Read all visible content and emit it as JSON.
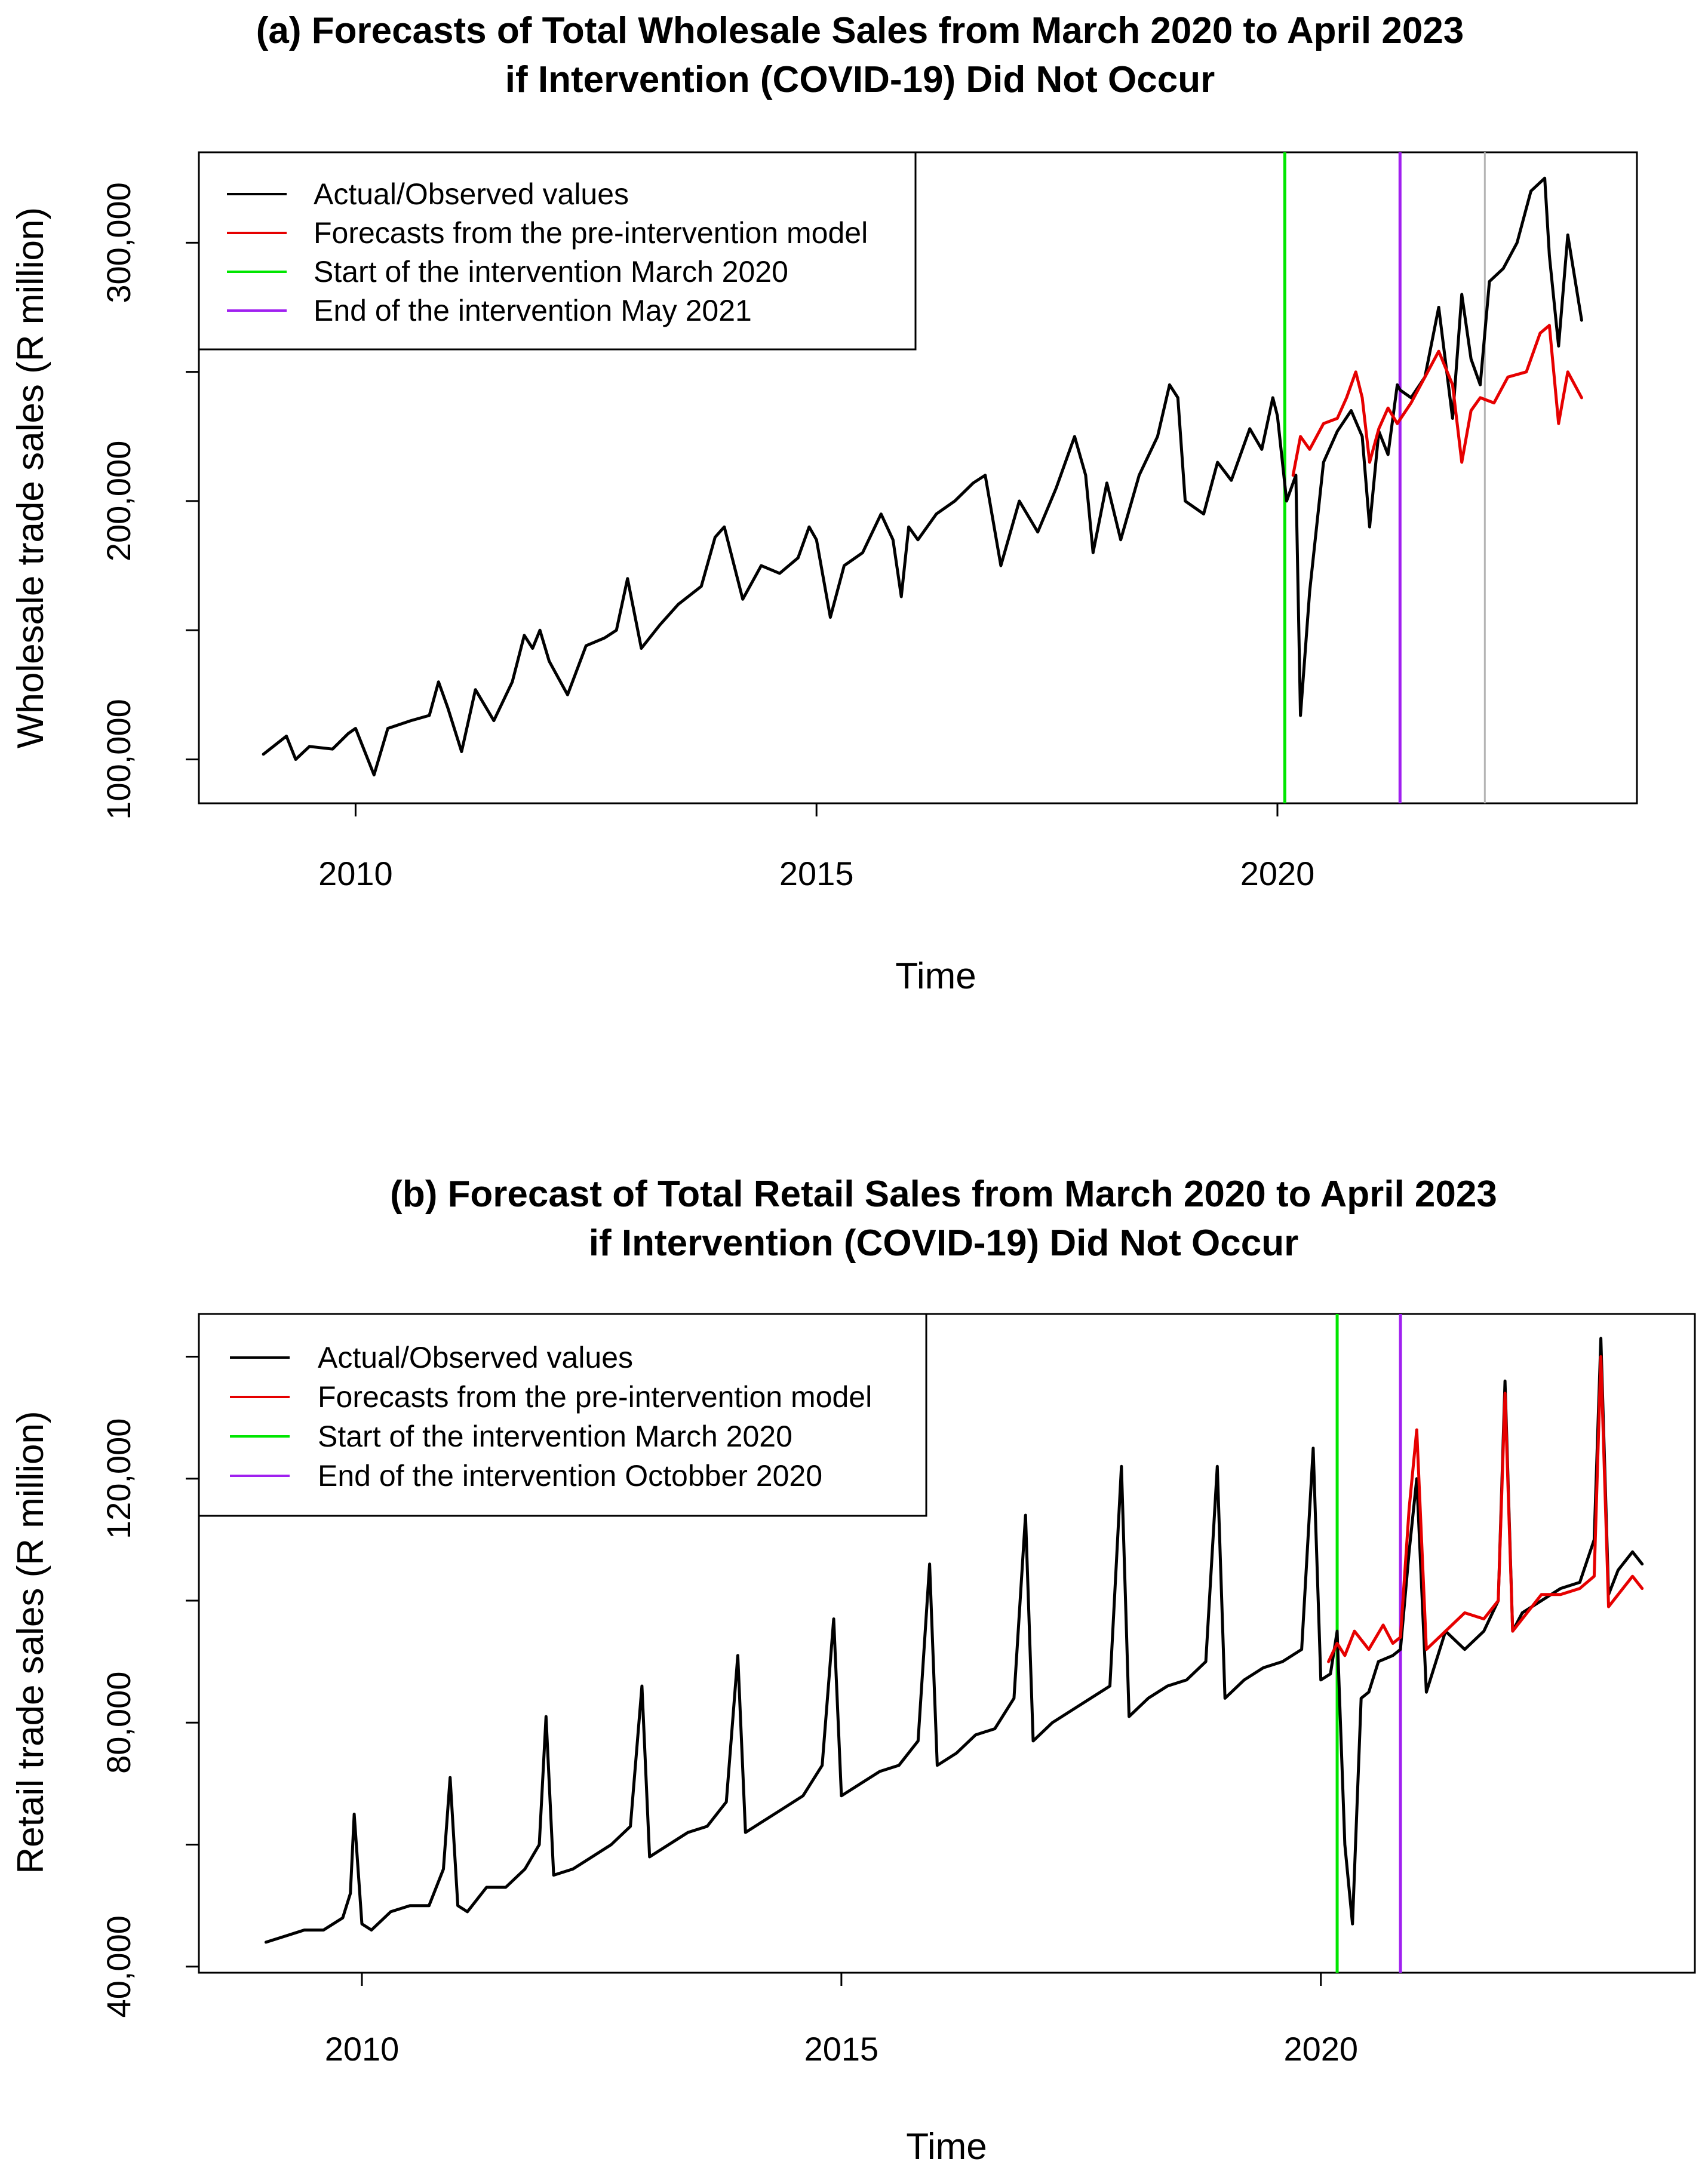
{
  "chart_data": [
    {
      "type": "line",
      "panel": "a",
      "title": [
        "(a) Forecasts of Total Wholesale Sales from March 2020 to April 2023",
        "if Intervention (COVID-19) Did Not Occur"
      ],
      "xlabel": "Time",
      "ylabel": "Wholesale trade sales (R million)",
      "xlim": [
        2008.3,
        2023.9
      ],
      "ylim": [
        83000,
        335000
      ],
      "xticks": [
        2010,
        2015,
        2020
      ],
      "xtick_labels": [
        "2010",
        "2015",
        "2020"
      ],
      "yticks": [
        100000,
        150000,
        200000,
        250000,
        300000
      ],
      "ytick_labels": [
        "100,000",
        "",
        "200,000",
        "",
        "300,000"
      ],
      "legend_position": "top-left",
      "legend": [
        {
          "label": "Actual/Observed values",
          "color": "#000000"
        },
        {
          "label": "Forecasts from the pre-intervention model",
          "color": "#e60000"
        },
        {
          "label": "Start of the intervention March 2020",
          "color": "#00e600"
        },
        {
          "label": "End of the intervention May 2021",
          "color": "#a020f0"
        }
      ],
      "vlines": [
        {
          "x": 2020.08,
          "color": "#00e600"
        },
        {
          "x": 2021.33,
          "color": "#a020f0"
        },
        {
          "x": 2022.25,
          "color": "#b4b4b4"
        }
      ],
      "series": [
        {
          "name": "Actual/Observed values",
          "color": "#000000",
          "x": [
            2009.0,
            2009.25,
            2009.35,
            2009.5,
            2009.75,
            2009.92,
            2010.0,
            2010.2,
            2010.35,
            2010.6,
            2010.8,
            2010.9,
            2011.0,
            2011.15,
            2011.3,
            2011.5,
            2011.7,
            2011.83,
            2011.92,
            2012.0,
            2012.1,
            2012.3,
            2012.5,
            2012.7,
            2012.83,
            2012.95,
            2013.1,
            2013.3,
            2013.5,
            2013.75,
            2013.9,
            2014.0,
            2014.2,
            2014.4,
            2014.6,
            2014.8,
            2014.92,
            2015.0,
            2015.15,
            2015.3,
            2015.5,
            2015.7,
            2015.83,
            2015.92,
            2016.0,
            2016.1,
            2016.3,
            2016.5,
            2016.7,
            2016.83,
            2017.0,
            2017.2,
            2017.4,
            2017.6,
            2017.8,
            2017.92,
            2018.0,
            2018.15,
            2018.3,
            2018.5,
            2018.7,
            2018.83,
            2018.92,
            2019.0,
            2019.2,
            2019.35,
            2019.5,
            2019.7,
            2019.83,
            2019.95,
            2020.0,
            2020.1,
            2020.2,
            2020.25,
            2020.35,
            2020.5,
            2020.65,
            2020.8,
            2020.92,
            2021.0,
            2021.1,
            2021.2,
            2021.3,
            2021.33,
            2021.45,
            2021.6,
            2021.75,
            2021.9,
            2022.0,
            2022.1,
            2022.2,
            2022.3,
            2022.45,
            2022.6,
            2022.75,
            2022.9,
            2022.95,
            2023.05,
            2023.15,
            2023.3
          ],
          "values": [
            102000,
            109000,
            100000,
            105000,
            104000,
            110000,
            112000,
            94000,
            112000,
            115000,
            117000,
            130000,
            120000,
            103000,
            127000,
            115000,
            130000,
            148000,
            143000,
            150000,
            138000,
            125000,
            144000,
            147000,
            150000,
            170000,
            143000,
            152000,
            160000,
            167000,
            186000,
            190000,
            162000,
            175000,
            172000,
            178000,
            190000,
            185000,
            155000,
            175000,
            180000,
            195000,
            185000,
            163000,
            190000,
            185000,
            195000,
            200000,
            207000,
            210000,
            175000,
            200000,
            188000,
            205000,
            225000,
            210000,
            180000,
            207000,
            185000,
            210000,
            225000,
            245000,
            240000,
            200000,
            195000,
            215000,
            208000,
            228000,
            220000,
            240000,
            233000,
            200000,
            210000,
            117000,
            165000,
            215000,
            227000,
            235000,
            225000,
            190000,
            227000,
            218000,
            245000,
            243000,
            240000,
            248000,
            275000,
            232000,
            280000,
            255000,
            245000,
            285000,
            290000,
            300000,
            320000,
            325000,
            295000,
            260000,
            303000,
            270000
          ]
        },
        {
          "name": "Forecasts from the pre-intervention model",
          "color": "#e60000",
          "x": [
            2020.17,
            2020.25,
            2020.35,
            2020.5,
            2020.65,
            2020.75,
            2020.85,
            2020.92,
            2021.0,
            2021.1,
            2021.2,
            2021.3,
            2021.45,
            2021.6,
            2021.75,
            2021.9,
            2022.0,
            2022.1,
            2022.2,
            2022.35,
            2022.5,
            2022.7,
            2022.85,
            2022.95,
            2023.05,
            2023.15,
            2023.3
          ],
          "values": [
            210000,
            225000,
            220000,
            230000,
            232000,
            240000,
            250000,
            240000,
            215000,
            228000,
            236000,
            230000,
            238000,
            248000,
            258000,
            245000,
            215000,
            235000,
            240000,
            238000,
            248000,
            250000,
            265000,
            268000,
            230000,
            250000,
            240000
          ]
        }
      ]
    },
    {
      "type": "line",
      "panel": "b",
      "title": [
        "(b) Forecast of Total Retail Sales from March 2020 to April 2023",
        "if Intervention (COVID-19) Did Not Occur"
      ],
      "xlabel": "Time",
      "ylabel": "Retail trade sales (R million)",
      "xlim": [
        2008.3,
        2023.9
      ],
      "ylim": [
        39000,
        147000
      ],
      "xticks": [
        2010,
        2015,
        2020
      ],
      "xtick_labels": [
        "2010",
        "2015",
        "2020"
      ],
      "yticks": [
        40000,
        60000,
        80000,
        100000,
        120000,
        140000
      ],
      "ytick_labels": [
        "40,000",
        "",
        "80,000",
        "",
        "120,000",
        ""
      ],
      "legend_position": "top-left",
      "legend": [
        {
          "label": "Actual/Observed values",
          "color": "#000000"
        },
        {
          "label": "Forecasts from the pre-intervention model",
          "color": "#e60000"
        },
        {
          "label": "Start of the intervention March 2020",
          "color": "#00e600"
        },
        {
          "label": "End of the intervention Octobber 2020",
          "color": "#a020f0"
        }
      ],
      "vlines": [
        {
          "x": 2020.17,
          "color": "#00e600"
        },
        {
          "x": 2020.83,
          "color": "#a020f0"
        }
      ],
      "series": [
        {
          "name": "Actual/Observed values",
          "color": "#000000",
          "x": [
            2009.0,
            2009.2,
            2009.4,
            2009.6,
            2009.8,
            2009.88,
            2009.92,
            2010.0,
            2010.1,
            2010.3,
            2010.5,
            2010.7,
            2010.85,
            2010.92,
            2011.0,
            2011.1,
            2011.3,
            2011.5,
            2011.7,
            2011.85,
            2011.92,
            2012.0,
            2012.2,
            2012.4,
            2012.6,
            2012.8,
            2012.92,
            2013.0,
            2013.2,
            2013.4,
            2013.6,
            2013.8,
            2013.92,
            2014.0,
            2014.2,
            2014.4,
            2014.6,
            2014.8,
            2014.92,
            2015.0,
            2015.2,
            2015.4,
            2015.6,
            2015.8,
            2015.92,
            2016.0,
            2016.2,
            2016.4,
            2016.6,
            2016.8,
            2016.92,
            2017.0,
            2017.2,
            2017.4,
            2017.6,
            2017.8,
            2017.92,
            2018.0,
            2018.2,
            2018.4,
            2018.6,
            2018.8,
            2018.92,
            2019.0,
            2019.2,
            2019.4,
            2019.6,
            2019.8,
            2019.92,
            2020.0,
            2020.1,
            2020.17,
            2020.25,
            2020.33,
            2020.42,
            2020.5,
            2020.6,
            2020.75,
            2020.83,
            2020.92,
            2021.0,
            2021.1,
            2021.3,
            2021.5,
            2021.7,
            2021.85,
            2021.92,
            2022.0,
            2022.1,
            2022.3,
            2022.5,
            2022.7,
            2022.85,
            2022.92,
            2023.0,
            2023.1,
            2023.25,
            2023.35
          ],
          "values": [
            44000,
            45000,
            46000,
            46000,
            48000,
            52000,
            65000,
            47000,
            46000,
            49000,
            50000,
            50000,
            56000,
            71000,
            50000,
            49000,
            53000,
            53000,
            56000,
            60000,
            81000,
            55000,
            56000,
            58000,
            60000,
            63000,
            86000,
            58000,
            60000,
            62000,
            63000,
            67000,
            91000,
            62000,
            64000,
            66000,
            68000,
            73000,
            97000,
            68000,
            70000,
            72000,
            73000,
            77000,
            106000,
            73000,
            75000,
            78000,
            79000,
            84000,
            114000,
            77000,
            80000,
            82000,
            84000,
            86000,
            122000,
            81000,
            84000,
            86000,
            87000,
            90000,
            122000,
            84000,
            87000,
            89000,
            90000,
            92000,
            125000,
            87000,
            88000,
            95000,
            60000,
            47000,
            84000,
            85000,
            90000,
            91000,
            92000,
            108000,
            120000,
            85000,
            95000,
            92000,
            95000,
            100000,
            136000,
            95000,
            98000,
            100000,
            102000,
            103000,
            110000,
            143000,
            101000,
            105000,
            108000,
            106000
          ]
        },
        {
          "name": "Forecasts from the pre-intervention model",
          "color": "#e60000",
          "x": [
            2020.08,
            2020.17,
            2020.25,
            2020.35,
            2020.5,
            2020.65,
            2020.75,
            2020.83,
            2020.92,
            2021.0,
            2021.1,
            2021.3,
            2021.5,
            2021.7,
            2021.85,
            2021.92,
            2022.0,
            2022.1,
            2022.3,
            2022.5,
            2022.7,
            2022.85,
            2022.92,
            2023.0,
            2023.1,
            2023.25,
            2023.35
          ],
          "values": [
            90000,
            93000,
            91000,
            95000,
            92000,
            96000,
            93000,
            94000,
            115000,
            128000,
            92000,
            95000,
            98000,
            97000,
            100000,
            134000,
            95000,
            97000,
            101000,
            101000,
            102000,
            104000,
            140000,
            99000,
            101000,
            104000,
            102000
          ]
        }
      ]
    }
  ]
}
